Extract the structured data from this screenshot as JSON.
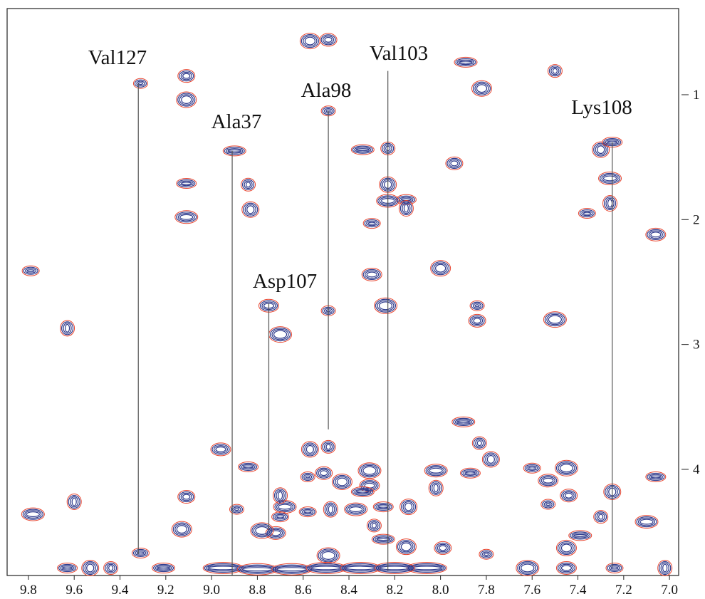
{
  "chart_data": {
    "type": "contour-peaks",
    "xlim": [
      9.893,
      6.96
    ],
    "ylim": [
      0.31,
      4.85
    ],
    "xticks": [
      9.8,
      9.6,
      9.4,
      9.2,
      {
        "value": 9.0,
        "label": "9.0"
      },
      8.8,
      8.6,
      8.4,
      8.2,
      {
        "value": 8.0,
        "label": "8.0"
      },
      7.8,
      7.6,
      7.4,
      7.2,
      {
        "value": 7.0,
        "label": "7.0"
      }
    ],
    "yticks": [
      1,
      2,
      3,
      4
    ],
    "outer_color": "#e8452f",
    "inner_color": "#2e3a8c",
    "peaks": {
      "x": [
        9.31,
        9.11,
        9.11,
        8.9,
        8.84,
        8.83,
        9.11,
        9.11,
        9.63,
        9.79,
        8.75,
        8.7,
        8.49,
        8.49,
        8.57,
        8.34,
        8.23,
        8.23,
        8.15,
        8.23,
        8.15,
        8.3,
        8.3,
        8.24,
        8.49,
        7.94,
        7.82,
        7.89,
        7.5,
        7.3,
        7.25,
        7.26,
        7.26,
        7.36,
        7.06,
        7.5,
        7.84,
        7.84,
        8.0,
        7.9,
        7.83,
        7.78,
        7.87,
        8.02,
        8.02,
        7.6,
        7.53,
        7.45,
        7.53,
        7.44,
        7.45,
        7.39,
        7.3,
        7.25,
        7.06,
        7.1,
        7.02,
        7.24,
        7.45,
        7.62,
        7.8,
        7.99,
        8.15,
        8.25,
        8.29,
        8.14,
        8.25,
        8.37,
        8.48,
        8.58,
        8.31,
        8.31,
        8.58,
        8.51,
        8.43,
        8.34,
        8.49,
        8.57,
        8.84,
        8.68,
        8.7,
        8.7,
        8.72,
        8.78,
        8.89,
        9.11,
        9.13,
        9.21,
        9.44,
        9.53,
        9.63,
        9.78,
        9.6,
        9.31,
        8.96,
        8.49,
        8.06,
        8.95,
        8.8,
        8.65,
        8.5,
        8.35,
        8.2
      ],
      "y": [
        0.91,
        0.85,
        1.04,
        1.45,
        1.72,
        1.92,
        1.71,
        1.98,
        2.87,
        2.41,
        2.69,
        2.92,
        1.13,
        0.56,
        0.57,
        1.44,
        1.43,
        1.72,
        1.84,
        1.85,
        1.91,
        2.03,
        2.44,
        2.69,
        2.73,
        1.55,
        0.95,
        0.74,
        0.81,
        1.44,
        1.38,
        1.67,
        1.87,
        1.95,
        2.12,
        2.8,
        2.69,
        2.81,
        2.39,
        3.62,
        3.79,
        3.92,
        4.03,
        4.01,
        4.15,
        3.99,
        4.09,
        3.99,
        4.28,
        4.21,
        4.63,
        4.53,
        4.38,
        4.18,
        4.06,
        4.42,
        4.79,
        4.79,
        4.79,
        4.79,
        4.68,
        4.63,
        4.62,
        4.56,
        4.45,
        4.3,
        4.3,
        4.32,
        4.32,
        4.34,
        4.13,
        4.01,
        4.06,
        4.03,
        4.1,
        4.18,
        3.82,
        3.84,
        3.98,
        4.3,
        4.21,
        4.38,
        4.51,
        4.49,
        4.32,
        4.22,
        4.48,
        4.79,
        4.79,
        4.79,
        4.79,
        4.36,
        4.26,
        4.67,
        3.84,
        4.69,
        4.79,
        4.79,
        4.8,
        4.8,
        4.79,
        4.79,
        4.79
      ]
    },
    "assignments": [
      {
        "label": "Val127",
        "x": 9.32,
        "y_start": 0.91,
        "y_end": 4.68
      },
      {
        "label": "Ala37",
        "x": 8.91,
        "y_start": 1.45,
        "y_end": 4.85
      },
      {
        "label": "Ala98",
        "x": 8.49,
        "y_start": 1.13,
        "y_end": 3.68
      },
      {
        "label": "Val103",
        "x": 8.23,
        "y_start": 0.81,
        "y_end": 4.81
      },
      {
        "label": "Asp107",
        "x": 8.75,
        "y_start": 2.67,
        "y_end": 4.49
      },
      {
        "label": "Lys108",
        "x": 7.25,
        "y_start": 1.38,
        "y_end": 4.78
      }
    ]
  }
}
